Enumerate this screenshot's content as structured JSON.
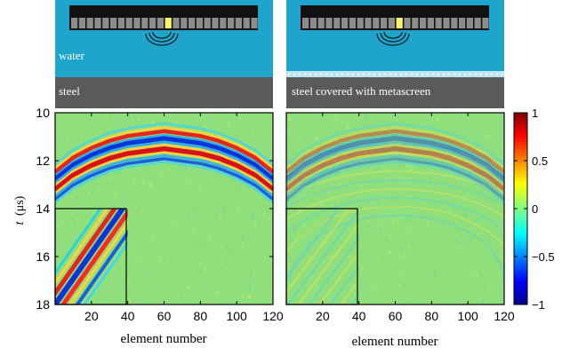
{
  "chart_data": [
    {
      "type": "heatmap",
      "panel": "left",
      "header": {
        "medium_top": "water",
        "medium_bottom": "steel"
      },
      "xlabel": "element number",
      "ylabel": "t (µs)",
      "xlim": [
        0,
        120
      ],
      "ylim": [
        10,
        18
      ],
      "xticks": [
        20,
        40,
        60,
        80,
        100,
        120
      ],
      "yticks": [
        10,
        12,
        14,
        16,
        18
      ],
      "x": [
        0,
        10,
        20,
        30,
        40,
        50,
        60,
        70,
        80,
        90,
        100,
        110,
        120
      ],
      "y_peak_arrival_us": [
        12.8,
        12.2,
        11.8,
        11.5,
        11.3,
        11.2,
        11.1,
        11.2,
        11.3,
        11.5,
        11.8,
        12.2,
        12.8
      ],
      "peak_amplitude": 1.0,
      "inset": {
        "x_range": [
          0,
          40
        ],
        "t_range": [
          14,
          18
        ],
        "content": "diagonal stripes"
      }
    },
    {
      "type": "heatmap",
      "panel": "right",
      "header": {
        "medium_top": "",
        "medium_bottom": "steel covered with metascreen"
      },
      "xlabel": "element number",
      "ylabel": "",
      "xlim": [
        0,
        120
      ],
      "ylim": [
        10,
        18
      ],
      "xticks": [
        20,
        40,
        60,
        80,
        100,
        120
      ],
      "x": [
        0,
        10,
        20,
        30,
        40,
        50,
        60,
        70,
        80,
        90,
        100,
        110,
        120
      ],
      "y_peak_arrival_us": [
        12.8,
        12.2,
        11.8,
        11.5,
        11.3,
        11.2,
        11.1,
        11.2,
        11.3,
        11.5,
        11.8,
        12.2,
        12.8
      ],
      "peak_amplitude": 0.25,
      "inset": {
        "x_range": [
          0,
          40
        ],
        "t_range": [
          14,
          18
        ],
        "content": "faint diagonal stripes"
      }
    }
  ],
  "colorbar": {
    "ticks": [
      "1",
      "0.5",
      "0",
      "−0.5",
      "−1"
    ],
    "range": [
      -1,
      1
    ],
    "colormap": "jet"
  },
  "colors": {
    "water": "#1fa5cc",
    "steel": "#5a5a5a",
    "metascreen": "#bfe7f3",
    "array_body": "#111111",
    "array_element": "#8c8c8c",
    "active_element": "#f7f36a",
    "field_bg": "#8fe07c"
  },
  "labels": {
    "left_xlabel": "element number",
    "right_xlabel": "element number",
    "ylabel_t": "t",
    "ylabel_unit": "(μs)"
  }
}
